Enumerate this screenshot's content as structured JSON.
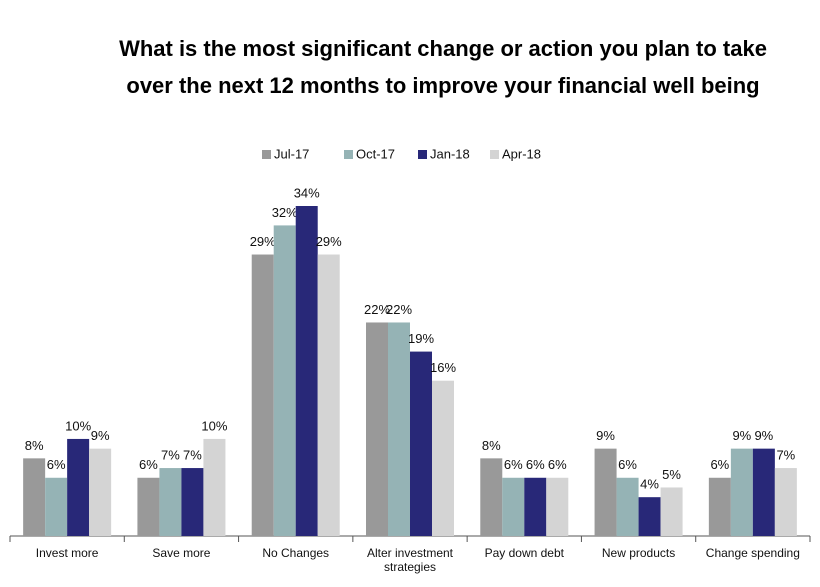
{
  "chart_data": {
    "type": "bar",
    "title": [
      "What is the most significant change or action you plan to take",
      "over the next 12 months  to improve your financial well being"
    ],
    "categories": [
      "Invest more",
      "Save more",
      "No Changes",
      "Alter investment strategies",
      "Pay down debt",
      "New products",
      "Change spending"
    ],
    "series": [
      {
        "name": "Jul-17",
        "color": "#999999",
        "values": [
          8,
          6,
          29,
          22,
          8,
          9,
          6
        ],
        "value_labels": [
          "8%",
          "6%",
          "29%",
          "22%",
          "8%",
          "9%",
          "6%"
        ]
      },
      {
        "name": "Oct-17",
        "color": "#95b3b5",
        "values": [
          6,
          7,
          32,
          22,
          6,
          6,
          9
        ],
        "value_labels": [
          "6%",
          "7%",
          "32%",
          "22%",
          "6%",
          "6%",
          "9%"
        ]
      },
      {
        "name": "Jan-18",
        "color": "#282878",
        "values": [
          10,
          7,
          34,
          19,
          6,
          4,
          9
        ],
        "value_labels": [
          "10%",
          "7%",
          "34%",
          "19%",
          "6%",
          "4%",
          "9%"
        ]
      },
      {
        "name": "Apr-18",
        "color": "#d4d4d4",
        "values": [
          9,
          10,
          29,
          16,
          6,
          5,
          7
        ],
        "value_labels": [
          "9%",
          "10%",
          "29%",
          "16%",
          "6%",
          "5%",
          "7%"
        ]
      }
    ],
    "legend": "top"
  }
}
